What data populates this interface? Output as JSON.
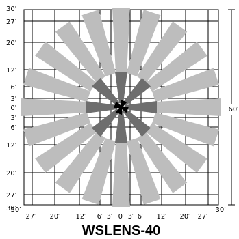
{
  "title": "WSLENS-40",
  "dimension_label": "60′",
  "y_tick_labels": [
    "30′",
    "27′",
    "20′",
    "12′",
    "6′",
    "3′",
    "0′",
    "3′",
    "6′",
    "12′",
    "20′",
    "27′",
    "30′"
  ],
  "x_tick_labels": [
    "30′",
    "27′",
    "20′",
    "12′",
    "6′",
    "3′",
    "0′",
    "3′",
    "6′",
    "12′",
    "20′",
    "27′",
    "30′"
  ],
  "colors": {
    "outer_beam": "#bdbdbd",
    "inner_beam": "#6e6e6e",
    "center_beam": "#000000",
    "grid": "#000000",
    "background": "#ffffff"
  }
}
